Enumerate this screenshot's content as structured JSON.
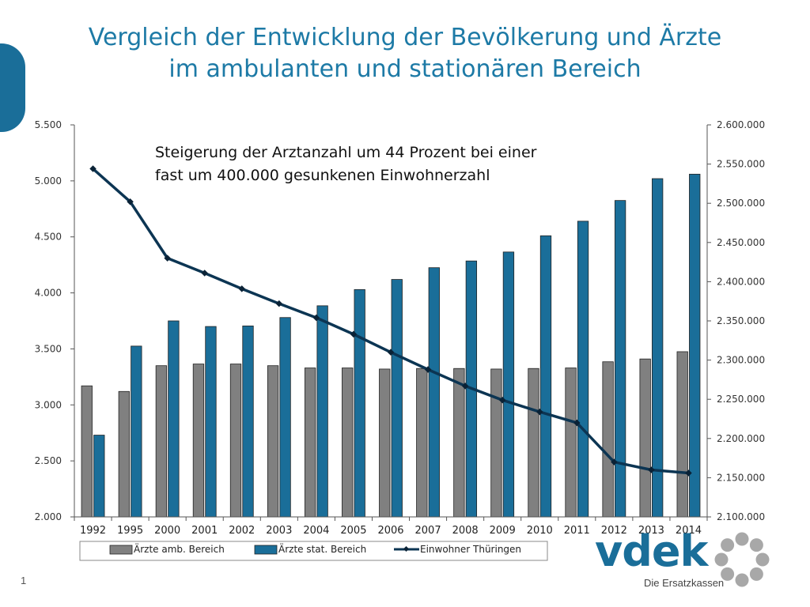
{
  "title": {
    "line1": "Vergleich der Entwicklung der Bevölkerung und Ärzte",
    "line2": "im ambulanten und stationären Bereich"
  },
  "page_number": "1",
  "logo": {
    "word": "vdek",
    "subtitle": "Die Ersatzkassen"
  },
  "colors": {
    "accent": "#1a6e99",
    "title": "#1d7aa6",
    "amb": "#808080",
    "stat": "#1a6e99",
    "line": "#0c3553"
  },
  "chart_data": {
    "type": "bar",
    "categories": [
      "1992",
      "1995",
      "2000",
      "2001",
      "2002",
      "2003",
      "2004",
      "2005",
      "2006",
      "2007",
      "2008",
      "2009",
      "2010",
      "2011",
      "2012",
      "2013",
      "2014"
    ],
    "series": [
      {
        "name": "Ärzte amb. Bereich",
        "type": "bar",
        "axis": "left",
        "values": [
          3170,
          3120,
          3350,
          3365,
          3365,
          3350,
          3330,
          3330,
          3320,
          3325,
          3325,
          3320,
          3325,
          3330,
          3385,
          3410,
          3475
        ]
      },
      {
        "name": "Ärzte stat. Bereich",
        "type": "bar",
        "axis": "left",
        "values": [
          2730,
          3525,
          3750,
          3700,
          3705,
          3780,
          3885,
          4030,
          4120,
          4225,
          4285,
          4365,
          4510,
          4640,
          4825,
          5020,
          5060
        ]
      },
      {
        "name": "Einwohner Thüringen",
        "type": "line",
        "axis": "right",
        "values": [
          2544000,
          2502000,
          2430000,
          2411000,
          2391000,
          2372000,
          2354000,
          2333000,
          2310000,
          2288000,
          2267000,
          2249000,
          2234000,
          2220000,
          2170000,
          2160000,
          2156000
        ]
      }
    ],
    "ylim": [
      2000,
      5500
    ],
    "y_ticks": [
      "2.000",
      "2.500",
      "3.000",
      "3.500",
      "4.000",
      "4.500",
      "5.000",
      "5.500"
    ],
    "y2lim": [
      2100000,
      2600000
    ],
    "y2_ticks": [
      "2.100.000",
      "2.150.000",
      "2.200.000",
      "2.250.000",
      "2.300.000",
      "2.350.000",
      "2.400.000",
      "2.450.000",
      "2.500.000",
      "2.550.000",
      "2.600.000"
    ],
    "annotation": {
      "line1": "Steigerung der Arztanzahl um 44 Prozent bei einer",
      "line2": "fast um 400.000 gesunkenen Einwohnerzahl"
    },
    "legend": [
      "Ärzte amb. Bereich",
      "Ärzte stat. Bereich",
      "Einwohner Thüringen"
    ],
    "legend_position": "bottom",
    "grid": false
  }
}
